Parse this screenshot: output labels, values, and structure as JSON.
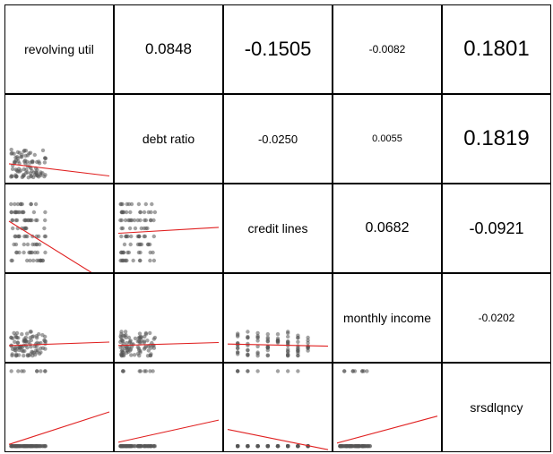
{
  "chart_data": {
    "type": "scatter-matrix",
    "variables": [
      "revolving util",
      "debt ratio",
      "credit lines",
      "monthly income",
      "srsdlqncy"
    ],
    "correlations": [
      [
        null,
        0.0848,
        -0.1505,
        -0.0082,
        0.1801
      ],
      [
        0.0848,
        null,
        -0.025,
        0.0055,
        0.1819
      ],
      [
        -0.1505,
        -0.025,
        null,
        0.0682,
        -0.0921
      ],
      [
        -0.0082,
        0.0055,
        0.0682,
        null,
        -0.0202
      ],
      [
        0.1801,
        0.1819,
        -0.0921,
        -0.0202,
        null
      ]
    ],
    "upper_labels": [
      [
        "0.0848",
        "-0.1505",
        "-0.0082",
        "0.1801"
      ],
      [
        "-0.0250",
        "0.0055",
        "0.1819"
      ],
      [
        "0.0682",
        "-0.0921"
      ],
      [
        "-0.0202"
      ]
    ],
    "scatter_color": "#555555",
    "fit_line_color": "#e02020",
    "grid": false,
    "legend": "none"
  }
}
